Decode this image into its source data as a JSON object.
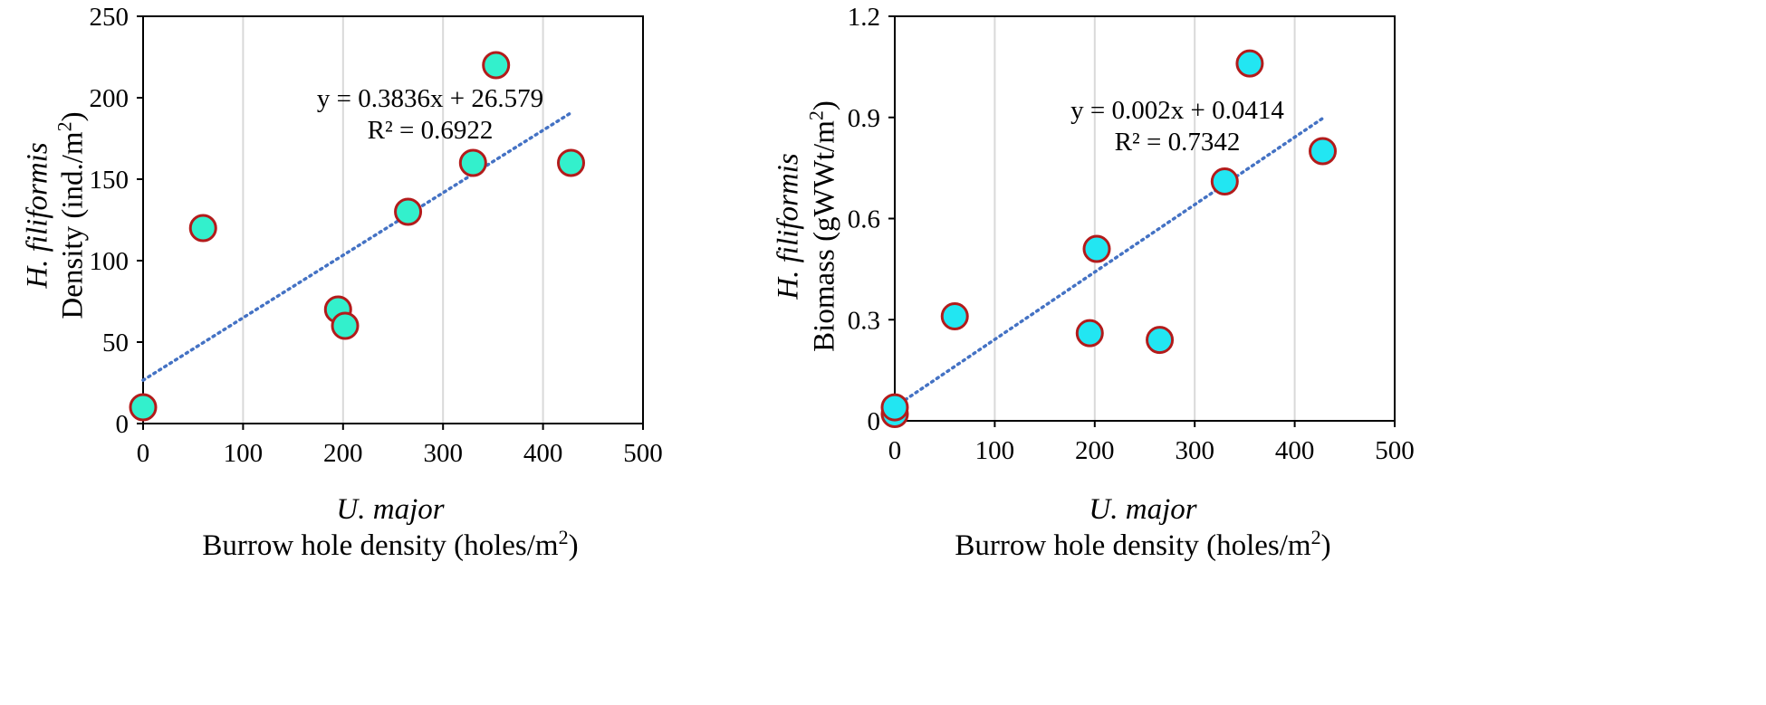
{
  "chart_data": [
    {
      "type": "scatter",
      "title": "",
      "xlabel": {
        "species": "U. major",
        "text": "Burrow hole density (holes/m",
        "sup": "2",
        "close": ")"
      },
      "ylabel": {
        "species": "H. filiformis",
        "text": "Density (ind./m",
        "sup": "2",
        "close": ")"
      },
      "xlim": [
        0,
        500
      ],
      "ylim": [
        0,
        250
      ],
      "xticks": [
        0,
        100,
        200,
        300,
        400,
        500
      ],
      "yticks": [
        0,
        50,
        100,
        150,
        200,
        250
      ],
      "grid": "vertical",
      "marker_fill": "#33f0cc",
      "marker_edge": "#b31b1b",
      "trend_color": "#4472c4",
      "points": [
        {
          "x": 0,
          "y": 10
        },
        {
          "x": 60,
          "y": 120
        },
        {
          "x": 195,
          "y": 70
        },
        {
          "x": 202,
          "y": 60
        },
        {
          "x": 265,
          "y": 130
        },
        {
          "x": 330,
          "y": 160
        },
        {
          "x": 353,
          "y": 220
        },
        {
          "x": 428,
          "y": 160
        }
      ],
      "trendline": {
        "slope": 0.3836,
        "intercept": 26.579,
        "x_range": [
          0,
          428
        ]
      },
      "equation": "y = 0.3836x + 26.579",
      "r2": "R² = 0.6922"
    },
    {
      "type": "scatter",
      "title": "",
      "xlabel": {
        "species": "U. major",
        "text": "Burrow hole density (holes/m",
        "sup": "2",
        "close": ")"
      },
      "ylabel": {
        "species": "H. filiformis",
        "text": "Biomass (gWWt/m",
        "sup": "2",
        "close": ")"
      },
      "xlim": [
        0,
        500
      ],
      "ylim": [
        0,
        1.2
      ],
      "xticks": [
        0,
        100,
        200,
        300,
        400,
        500
      ],
      "yticks": [
        0,
        0.3,
        0.6,
        0.9,
        1.2
      ],
      "ytick_labels": [
        "0",
        "0.3",
        "0.6",
        "0.9",
        "1.2"
      ],
      "grid": "vertical",
      "marker_fill": "#22e6f2",
      "marker_edge": "#b31b1b",
      "trend_color": "#4472c4",
      "points": [
        {
          "x": 0,
          "y": 0.02
        },
        {
          "x": 0,
          "y": 0.04
        },
        {
          "x": 60,
          "y": 0.31
        },
        {
          "x": 195,
          "y": 0.26
        },
        {
          "x": 202,
          "y": 0.51
        },
        {
          "x": 265,
          "y": 0.24
        },
        {
          "x": 330,
          "y": 0.71
        },
        {
          "x": 355,
          "y": 1.06
        },
        {
          "x": 428,
          "y": 0.8
        }
      ],
      "trendline": {
        "slope": 0.002,
        "intercept": 0.0414,
        "x_range": [
          0,
          428
        ]
      },
      "equation": "y = 0.002x + 0.0414",
      "r2": "R² = 0.7342"
    }
  ]
}
